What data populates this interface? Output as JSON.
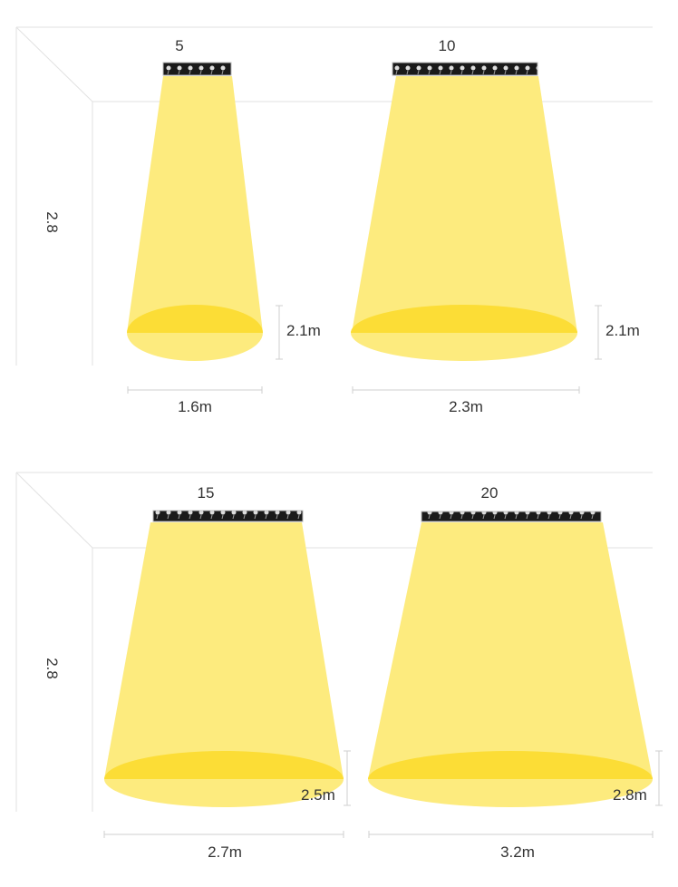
{
  "colors": {
    "beam": "#fdeb7e",
    "floor_spot": "#fcdd36",
    "fixture": "#1a1a1a"
  },
  "panels": [
    {
      "ceiling_height": "2.8",
      "fixtures": [
        {
          "led_count": "5",
          "spot_height": "2.1m",
          "spot_width": "1.6m"
        },
        {
          "led_count": "10",
          "spot_height": "2.1m",
          "spot_width": "2.3m"
        }
      ]
    },
    {
      "ceiling_height": "2.8",
      "fixtures": [
        {
          "led_count": "15",
          "spot_height": "2.5m",
          "spot_width": "2.7m"
        },
        {
          "led_count": "20",
          "spot_height": "2.8m",
          "spot_width": "3.2m"
        }
      ]
    }
  ]
}
